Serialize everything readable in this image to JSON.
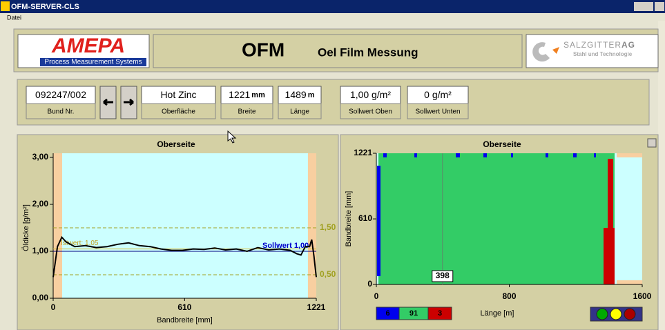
{
  "window": {
    "title": "OFM-SERVER-CLS",
    "menu": [
      "Datei"
    ]
  },
  "header": {
    "logo": "AMEPA",
    "logo_sub": "Process Measurement Systems",
    "title": "OFM",
    "subtitle": "Oel Film Messung",
    "partner": "SALZGITTER",
    "partner_suffix": "AG",
    "partner_sub": "Stahl und Technologie"
  },
  "fields": [
    {
      "value": "092247/002",
      "label": "Bund Nr."
    },
    {
      "value": "Hot Zinc",
      "label": "Oberfläche"
    },
    {
      "value": 1221,
      "unit": "mm",
      "label": "Breite"
    },
    {
      "value": 1489,
      "unit": "m",
      "label": "Länge"
    },
    {
      "value": "1,00 g/m²",
      "label": "Sollwert Oben"
    },
    {
      "value": "0 g/m²",
      "label": "Sollwert Unten"
    }
  ],
  "profile_chart": {
    "type": "line",
    "title": "Oberseite",
    "y_label": "Öldicke [g/m²]",
    "x_label": "Bandbreite [mm]",
    "x": [
      0,
      20,
      40,
      60,
      100,
      150,
      200,
      250,
      300,
      350,
      400,
      450,
      500,
      550,
      600,
      650,
      700,
      750,
      800,
      850,
      900,
      950,
      1000,
      1050,
      1100,
      1130,
      1150,
      1170,
      1190,
      1200,
      1210,
      1221
    ],
    "values": [
      0.45,
      1.1,
      1.3,
      1.2,
      1.1,
      1.12,
      1.08,
      1.1,
      1.15,
      1.18,
      1.12,
      1.1,
      1.05,
      1.02,
      1.02,
      1.05,
      1.04,
      1.07,
      1.03,
      1.05,
      1.0,
      1.08,
      1.03,
      1.05,
      1.02,
      0.95,
      0.92,
      1.1,
      1.1,
      1.25,
      0.9,
      0.45
    ],
    "color": "#000000",
    "xlim": [
      0,
      1221
    ],
    "ylim": [
      0,
      3
    ],
    "xticks": [
      0,
      610,
      1221
    ],
    "yticks": [
      {
        "value": 3,
        "label": "3,00"
      },
      {
        "value": 2,
        "label": "2,00"
      },
      {
        "value": 1,
        "label": "1,00"
      },
      {
        "value": 0,
        "label": "0,00"
      }
    ],
    "limits": [
      {
        "value": 1.5,
        "label": "1,50"
      },
      {
        "value": 0.5,
        "label": "0,50"
      }
    ],
    "actual": {
      "value": 1.05,
      "label": "Istwert: 1,05"
    },
    "target": {
      "value": 1,
      "label": "Sollwert 1,00"
    }
  },
  "map_chart": {
    "type": "heatmap",
    "title": "Oberseite",
    "y_label": "Bandbreite [mm]",
    "x_label": "Länge [m]",
    "xlim": [
      0,
      1600
    ],
    "ylim": [
      0,
      1221
    ],
    "xticks": [
      0,
      800,
      1600
    ],
    "yticks": [
      0,
      610,
      1221
    ],
    "marker": 398,
    "counts": [
      {
        "value": 6,
        "color": "#0000ee"
      },
      {
        "value": 91,
        "color": "#33cc66"
      },
      {
        "value": 3,
        "color": "#cc0000"
      }
    ]
  }
}
